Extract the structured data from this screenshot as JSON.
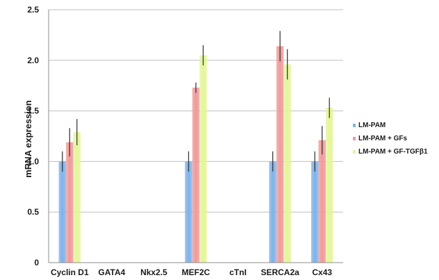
{
  "chart_data": {
    "type": "bar",
    "ylabel": "mRNA expression",
    "xlabel": "",
    "ylim": [
      0,
      2.5
    ],
    "yticks": [
      "0",
      "0.5",
      "1.0",
      "1.5",
      "2.0",
      "2.5"
    ],
    "grid": true,
    "legend_position": "right",
    "categories": [
      "Cyclin D1",
      "GATA4",
      "Nkx2.5",
      "MEF2C",
      "cTnI",
      "SERCA2a",
      "Cx43"
    ],
    "series": [
      {
        "name": "LM-PAM",
        "color": "#7fb2ea",
        "values": [
          1.0,
          null,
          null,
          1.0,
          null,
          1.0,
          1.0
        ],
        "errors": [
          0.1,
          null,
          null,
          0.1,
          null,
          0.1,
          0.1
        ]
      },
      {
        "name": "LM-PAM + GFs",
        "color": "#f09a9a",
        "values": [
          1.19,
          null,
          null,
          1.73,
          null,
          2.14,
          1.21
        ],
        "errors": [
          0.14,
          null,
          null,
          0.05,
          null,
          0.15,
          0.14
        ]
      },
      {
        "name": "LM-PAM + GF-TGFβ1",
        "color": "#e4f59a",
        "values": [
          1.29,
          null,
          null,
          2.05,
          null,
          1.96,
          1.53
        ],
        "errors": [
          0.13,
          null,
          null,
          0.1,
          null,
          0.15,
          0.1
        ]
      }
    ]
  }
}
